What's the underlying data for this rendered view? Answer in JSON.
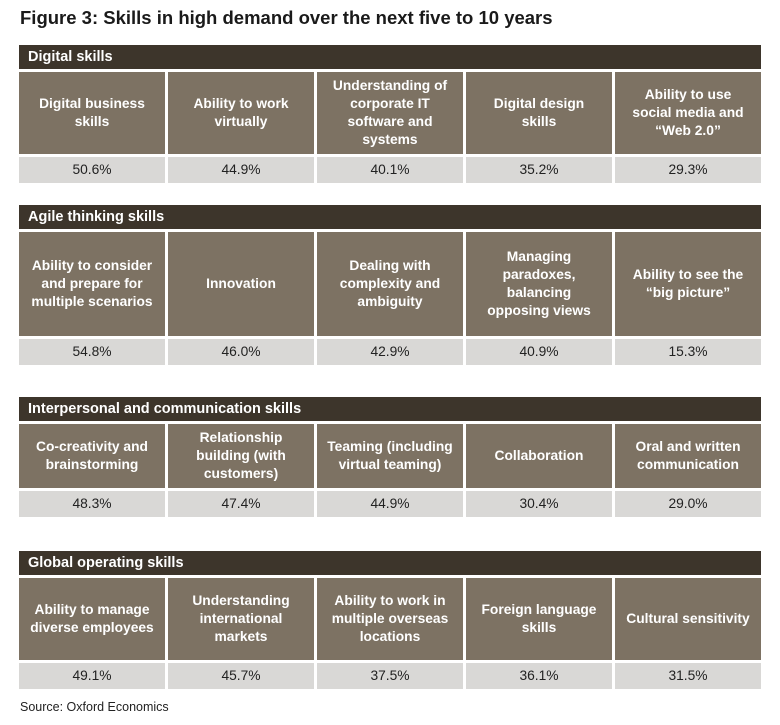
{
  "title": "Figure 3: Skills in high demand over the next five to 10 years",
  "sections": [
    {
      "header": "Digital skills",
      "skills": [
        {
          "label": "Digital business skills",
          "value": "50.6%"
        },
        {
          "label": "Ability to work virtually",
          "value": "44.9%"
        },
        {
          "label": "Understanding of corporate IT software and systems",
          "value": "40.1%"
        },
        {
          "label": "Digital design skills",
          "value": "35.2%"
        },
        {
          "label": "Ability to use social media and “Web 2.0”",
          "value": "29.3%"
        }
      ]
    },
    {
      "header": "Agile thinking skills",
      "skills": [
        {
          "label": "Ability to consider and prepare for multiple scenarios",
          "value": "54.8%"
        },
        {
          "label": "Innovation",
          "value": "46.0%"
        },
        {
          "label": "Dealing with complexity and ambiguity",
          "value": "42.9%"
        },
        {
          "label": "Managing paradoxes, balancing opposing views",
          "value": "40.9%"
        },
        {
          "label": "Ability to see the “big picture”",
          "value": "15.3%"
        }
      ]
    },
    {
      "header": "Interpersonal and communication skills",
      "skills": [
        {
          "label": "Co-creativity and brainstorming",
          "value": "48.3%"
        },
        {
          "label": "Relationship building (with customers)",
          "value": "47.4%"
        },
        {
          "label": "Teaming (including virtual teaming)",
          "value": "44.9%"
        },
        {
          "label": "Collaboration",
          "value": "30.4%"
        },
        {
          "label": "Oral and written communication",
          "value": "29.0%"
        }
      ]
    },
    {
      "header": "Global operating skills",
      "skills": [
        {
          "label": "Ability to manage diverse employees",
          "value": "49.1%"
        },
        {
          "label": "Understanding international markets",
          "value": "45.7%"
        },
        {
          "label": "Ability to work in multiple overseas locations",
          "value": "37.5%"
        },
        {
          "label": "Foreign language skills",
          "value": "36.1%"
        },
        {
          "label": "Cultural sensitivity",
          "value": "31.5%"
        }
      ]
    }
  ],
  "source": "Source: Oxford Economics",
  "colors": {
    "header_bg": "#3d352b",
    "cell_bg": "#7d7263",
    "value_bg": "#d9d8d6"
  }
}
